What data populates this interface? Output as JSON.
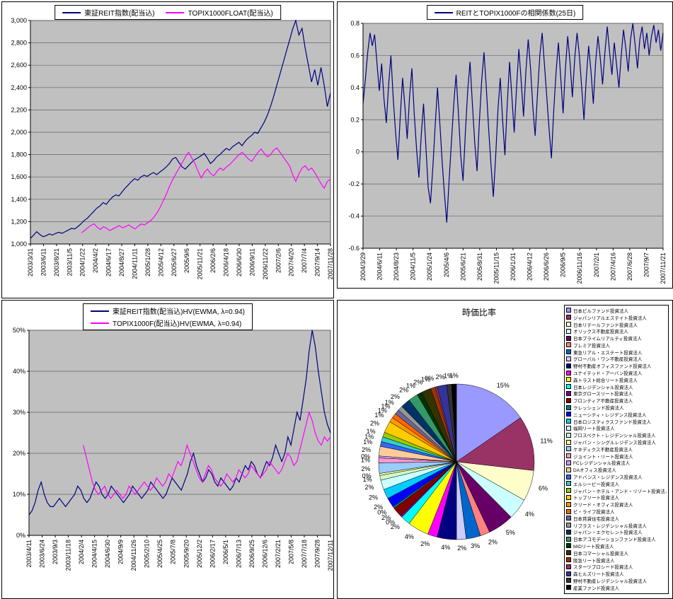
{
  "chart_data": [
    {
      "id": "index_chart",
      "type": "line",
      "title": "",
      "ylim": [
        1000,
        3000
      ],
      "yticks": [
        "3,000",
        "2,800",
        "2,600",
        "2,400",
        "2,200",
        "2,000",
        "1,800",
        "1,600",
        "1,400",
        "1,200",
        "1,000"
      ],
      "xticks": [
        "2003/3/31",
        "2003/6/11",
        "2003/8/21",
        "2003/11/5",
        "2004/1/22",
        "2004/4/2",
        "2004/6/17",
        "2004/8/27",
        "2004/11/11",
        "2005/1/28",
        "2005/4/12",
        "2005/6/27",
        "2005/9/6",
        "2005/11/21",
        "2006/2/6",
        "2006/4/18",
        "2006/6/30",
        "2006/9/11",
        "2006/11/22",
        "2007/2/6",
        "2007/4/20",
        "2007/7/4",
        "2007/9/14",
        "2007/11/28"
      ],
      "legend_position": "top",
      "grid": true,
      "plot_bg": "#C0C0C0",
      "series": [
        {
          "name": "東証REIT指数(配当込)",
          "color": "#000080",
          "start_frac": 0,
          "values": [
            1050,
            1080,
            1110,
            1085,
            1065,
            1075,
            1090,
            1080,
            1095,
            1105,
            1095,
            1110,
            1125,
            1140,
            1135,
            1155,
            1180,
            1210,
            1230,
            1260,
            1290,
            1320,
            1340,
            1370,
            1355,
            1390,
            1420,
            1440,
            1430,
            1465,
            1500,
            1530,
            1560,
            1585,
            1570,
            1600,
            1615,
            1605,
            1625,
            1640,
            1620,
            1645,
            1665,
            1690,
            1720,
            1760,
            1775,
            1730,
            1690,
            1670,
            1700,
            1730,
            1755,
            1770,
            1790,
            1810,
            1770,
            1720,
            1745,
            1780,
            1800,
            1830,
            1855,
            1840,
            1870,
            1890,
            1910,
            1880,
            1920,
            1950,
            1970,
            2000,
            1990,
            2040,
            2090,
            2150,
            2230,
            2320,
            2420,
            2520,
            2620,
            2720,
            2820,
            2920,
            3000,
            2870,
            2930,
            2750,
            2600,
            2450,
            2560,
            2420,
            2580,
            2420,
            2230,
            2350
          ]
        },
        {
          "name": "TOPIX1000FLOAT(配当込)",
          "color": "#FF00FF",
          "start_frac": 0.17,
          "values": [
            1100,
            1120,
            1145,
            1165,
            1180,
            1150,
            1130,
            1155,
            1140,
            1120,
            1135,
            1150,
            1165,
            1145,
            1155,
            1170,
            1150,
            1135,
            1160,
            1180,
            1170,
            1190,
            1210,
            1240,
            1280,
            1330,
            1390,
            1450,
            1520,
            1580,
            1630,
            1680,
            1730,
            1780,
            1820,
            1770,
            1720,
            1650,
            1590,
            1640,
            1670,
            1630,
            1610,
            1650,
            1680,
            1660,
            1690,
            1710,
            1740,
            1770,
            1800,
            1820,
            1790,
            1760,
            1740,
            1780,
            1820,
            1850,
            1810,
            1780,
            1800,
            1840,
            1860,
            1820,
            1780,
            1740,
            1700,
            1620,
            1560,
            1630,
            1680,
            1700,
            1660,
            1680,
            1640,
            1590,
            1540,
            1500,
            1560,
            1580
          ]
        }
      ]
    },
    {
      "id": "correlation_chart",
      "type": "line",
      "title": "",
      "ylim": [
        -0.6,
        0.8
      ],
      "yticks": [
        "0.8",
        "0.6",
        "0.4",
        "0.2",
        "0",
        "-0.2",
        "-0.4",
        "-0.6"
      ],
      "xticks": [
        "2004/3/29",
        "2004/6/11",
        "2004/8/23",
        "2004/11/5",
        "2005/1/24",
        "2005/4/6",
        "2005/6/21",
        "2005/8/31",
        "2005/11/15",
        "2006/1/31",
        "2006/4/12",
        "2006/6/26",
        "2006/9/5",
        "2006/11/16",
        "2007/2/1",
        "2007/4/16",
        "2007/6/28",
        "2007/9/7",
        "2007/11/21"
      ],
      "legend_position": "top",
      "grid": true,
      "plot_bg": "#C0C0C0",
      "series": [
        {
          "name": "REITとTOPIX1000Fの相関係数(25日)",
          "color": "#000080",
          "start_frac": 0,
          "values": [
            0.3,
            0.45,
            0.62,
            0.74,
            0.66,
            0.73,
            0.55,
            0.38,
            0.55,
            0.33,
            0.18,
            0.42,
            0.6,
            0.33,
            0.12,
            -0.05,
            0.22,
            0.46,
            0.28,
            0.08,
            0.34,
            0.52,
            0.24,
            0.02,
            -0.16,
            0.1,
            0.3,
            0.04,
            -0.22,
            -0.32,
            -0.1,
            0.16,
            0.4,
            0.18,
            -0.06,
            -0.26,
            -0.44,
            -0.18,
            0.06,
            0.3,
            0.48,
            0.24,
            -0.02,
            -0.18,
            0.12,
            0.38,
            0.56,
            0.3,
            0.06,
            -0.12,
            0.18,
            0.44,
            0.62,
            0.4,
            0.14,
            -0.08,
            -0.28,
            -0.04,
            0.26,
            0.46,
            0.2,
            -0.02,
            0.3,
            0.56,
            0.34,
            0.12,
            0.4,
            0.64,
            0.44,
            0.22,
            0.5,
            0.7,
            0.52,
            0.28,
            0.1,
            0.36,
            0.6,
            0.74,
            0.54,
            0.34,
            0.14,
            -0.04,
            0.26,
            0.5,
            0.68,
            0.46,
            0.24,
            0.52,
            0.72,
            0.56,
            0.34,
            0.58,
            0.74,
            0.6,
            0.4,
            0.2,
            0.46,
            0.66,
            0.5,
            0.3,
            0.56,
            0.72,
            0.58,
            0.42,
            0.62,
            0.78,
            0.62,
            0.48,
            0.68,
            0.54,
            0.4,
            0.6,
            0.76,
            0.64,
            0.5,
            0.7,
            0.8,
            0.66,
            0.52,
            0.7,
            0.78,
            0.64,
            0.74,
            0.6,
            0.72,
            0.79,
            0.68,
            0.76,
            0.63,
            0.74
          ]
        }
      ]
    },
    {
      "id": "hv_chart",
      "type": "line",
      "title": "",
      "ylim": [
        0,
        50
      ],
      "yticks": [
        "50%",
        "40%",
        "30%",
        "20%",
        "10%",
        "0%"
      ],
      "xticks": [
        "2003/4/11",
        "2003/6/24",
        "2003/9/3",
        "2003/11/18",
        "2004/2/4",
        "2004/4/15",
        "2004/6/30",
        "2004/9/9",
        "2004/11/26",
        "2005/2/10",
        "2005/4/25",
        "2005/7/8",
        "2005/9/20",
        "2005/12/2",
        "2006/2/17",
        "2006/5/1",
        "2006/7/13",
        "2006/9/25",
        "2006/12/6",
        "2007/2/21",
        "2007/5/8",
        "2007/7/18",
        "2007/9/28",
        "2007/12/11"
      ],
      "legend_position": "top",
      "grid": true,
      "plot_bg": "#C0C0C0",
      "series": [
        {
          "name": "東証REIT指数(配当込)HV(EWMA, λ=0.94)",
          "color": "#000080",
          "start_frac": 0,
          "values": [
            5,
            6,
            8,
            11,
            13,
            10,
            8,
            7,
            7,
            8,
            9,
            8,
            7,
            8,
            9,
            10,
            12,
            11,
            9,
            8,
            9,
            11,
            13,
            12,
            10,
            9,
            10,
            12,
            11,
            10,
            9,
            8,
            9,
            10,
            12,
            11,
            10,
            9,
            10,
            11,
            13,
            12,
            11,
            10,
            9,
            10,
            12,
            14,
            13,
            12,
            11,
            13,
            15,
            18,
            20,
            17,
            15,
            13,
            14,
            16,
            15,
            13,
            12,
            14,
            13,
            12,
            11,
            12,
            14,
            13,
            15,
            17,
            16,
            18,
            17,
            15,
            14,
            16,
            18,
            17,
            19,
            22,
            20,
            18,
            20,
            24,
            22,
            26,
            30,
            28,
            33,
            38,
            45,
            50,
            46,
            40,
            35,
            30,
            27,
            25
          ]
        },
        {
          "name": "TOPIX1000F(配当込)HV(EWMA, λ=0.94)",
          "color": "#FF00FF",
          "start_frac": 0.18,
          "values": [
            22,
            19,
            16,
            13,
            11,
            10,
            11,
            12,
            10,
            9,
            10,
            11,
            10,
            9,
            10,
            12,
            11,
            10,
            11,
            12,
            13,
            12,
            11,
            12,
            14,
            13,
            12,
            13,
            15,
            14,
            16,
            18,
            17,
            19,
            22,
            20,
            18,
            16,
            14,
            13,
            15,
            17,
            16,
            14,
            13,
            12,
            13,
            15,
            14,
            13,
            14,
            16,
            15,
            14,
            15,
            17,
            16,
            15,
            14,
            15,
            16,
            18,
            17,
            16,
            15,
            16,
            18,
            20,
            19,
            17,
            18,
            21,
            24,
            27,
            30,
            28,
            25,
            23,
            22,
            24,
            23,
            24
          ]
        }
      ]
    },
    {
      "id": "market_cap_pie",
      "type": "pie",
      "title": "時価比率",
      "legend_position": "right",
      "slices": [
        {
          "label": "日本ビルファンド投資法人",
          "value": 15.4,
          "color": "#9999FF"
        },
        {
          "label": "ジャパンリアルエステイト投資法人",
          "value": 11.4,
          "color": "#993366"
        },
        {
          "label": "日本リテールファンド投資法人",
          "value": 6.4,
          "color": "#FFFFCC"
        },
        {
          "label": "オリックス不動産投資法人",
          "value": 4.4,
          "color": "#CCFFFF"
        },
        {
          "label": "日本プライムリアルティ投資法人",
          "value": 5.4,
          "color": "#660066"
        },
        {
          "label": "プレミア投資法人",
          "value": 2,
          "color": "#FF8080"
        },
        {
          "label": "東急リアル・エステート投資法人",
          "value": 3,
          "color": "#0066CC"
        },
        {
          "label": "グローバル・ワン不動産投資法人",
          "value": 2,
          "color": "#CCCCFF"
        },
        {
          "label": "野村不動産オフィスファンド投資法人",
          "value": 4,
          "color": "#000080"
        },
        {
          "label": "ユナイテッド・アーバン投資法人",
          "value": 2,
          "color": "#FF00FF"
        },
        {
          "label": "森トラスト総合リート投資法人",
          "value": 4.4,
          "color": "#FFFF00"
        },
        {
          "label": "日本レジデンシャル投資法人",
          "value": 2,
          "color": "#00FFFF"
        },
        {
          "label": "東京グロースリート投資法人",
          "value": 0.4,
          "color": "#800080"
        },
        {
          "label": "フロンティア不動産投資法人",
          "value": 2,
          "color": "#800000"
        },
        {
          "label": "クレッシェンド投資法人",
          "value": 0.4,
          "color": "#008080"
        },
        {
          "label": "ニューシティ・レジデンス投資法人",
          "value": 2,
          "color": "#0000FF"
        },
        {
          "label": "日本ロジスティクスファンド投資法人",
          "value": 2,
          "color": "#00CCFF"
        },
        {
          "label": "福岡リート投資法人",
          "value": 2,
          "color": "#CCFFFF"
        },
        {
          "label": "プロスペクト・レジデンシャル投資法人",
          "value": 1,
          "color": "#CCFFCC"
        },
        {
          "label": "ジャパン・シングルレジデンス投資法人",
          "value": 0.4,
          "color": "#FFFF99"
        },
        {
          "label": "ケネディクス不動産投資法人",
          "value": 2.2,
          "color": "#99CCFF"
        },
        {
          "label": "ジョイント・リート投資法人",
          "value": 1,
          "color": "#FF99CC"
        },
        {
          "label": "FCレジデンシャル投資法人",
          "value": 0.4,
          "color": "#CC99FF"
        },
        {
          "label": "DAオフィス投資法人",
          "value": 2,
          "color": "#FFCC99"
        },
        {
          "label": "アドバンス・レジデンス投資法人",
          "value": 1,
          "color": "#3366FF"
        },
        {
          "label": "エルシーピー投資法人",
          "value": 1,
          "color": "#33CCCC"
        },
        {
          "label": "ジャパン・ホテル・アンド・リゾート投資法人",
          "value": 1,
          "color": "#99CC00"
        },
        {
          "label": "トップリート投資法人",
          "value": 2.4,
          "color": "#FFCC00"
        },
        {
          "label": "クリード・オフィス投資法人",
          "value": 1,
          "color": "#FF9900"
        },
        {
          "label": "ビ・ライフ投資法人",
          "value": 1,
          "color": "#FF6600"
        },
        {
          "label": "日本賃貸住宅投資法人",
          "value": 1,
          "color": "#666699"
        },
        {
          "label": "リプラス・レジデンシャル投資法人",
          "value": 1,
          "color": "#969696"
        },
        {
          "label": "ジャパン・エクセレント投資法人",
          "value": 2,
          "color": "#003366"
        },
        {
          "label": "日本アコモデーションファンド投資法人",
          "value": 2,
          "color": "#339966"
        },
        {
          "label": "MIDリート投資法人",
          "value": 1,
          "color": "#003300"
        },
        {
          "label": "日本コマーシャル投資法人",
          "value": 2,
          "color": "#333300"
        },
        {
          "label": "阪急リート投資法人",
          "value": 1,
          "color": "#993300"
        },
        {
          "label": "スターツプロシード投資法人",
          "value": 0.4,
          "color": "#993366"
        },
        {
          "label": "森ヒルズリート投資法人",
          "value": 2,
          "color": "#333399"
        },
        {
          "label": "野村不動産レジデンシャル投資法人",
          "value": 1,
          "color": "#333333"
        },
        {
          "label": "産業ファンド投資法人",
          "value": 1,
          "color": "#000000"
        }
      ]
    }
  ]
}
